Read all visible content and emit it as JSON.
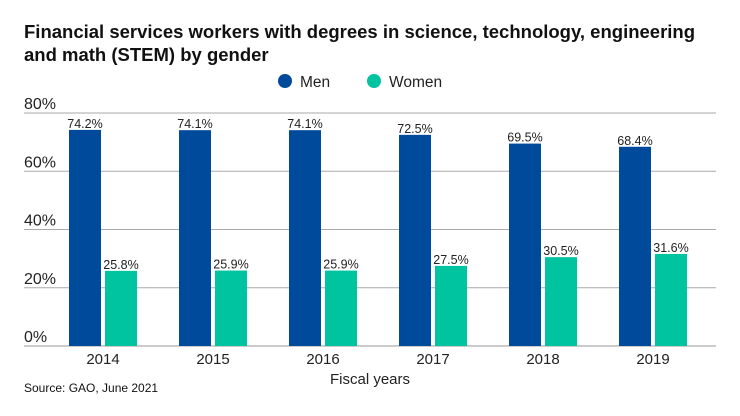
{
  "chart_data": {
    "type": "bar",
    "title": "Financial services workers with degrees in science, technology, engineering and math (STEM) by gender",
    "xlabel": "Fiscal years",
    "ylabel": "",
    "ylim": [
      0,
      80
    ],
    "yticks": [
      "0%",
      "20%",
      "40%",
      "60%",
      "80%"
    ],
    "ytick_values": [
      0,
      20,
      40,
      60,
      80
    ],
    "categories": [
      "2014",
      "2015",
      "2016",
      "2017",
      "2018",
      "2019"
    ],
    "series": [
      {
        "name": "Men",
        "color": "#004a9c",
        "values": [
          74.2,
          74.1,
          74.1,
          72.5,
          69.5,
          68.4
        ],
        "labels": [
          "74.2%",
          "74.1%",
          "74.1%",
          "72.5%",
          "69.5%",
          "68.4%"
        ]
      },
      {
        "name": "Women",
        "color": "#00c3a0",
        "values": [
          25.8,
          25.9,
          25.9,
          27.5,
          30.5,
          31.6
        ],
        "labels": [
          "25.8%",
          "25.9%",
          "25.9%",
          "27.5%",
          "30.5%",
          "31.6%"
        ]
      }
    ],
    "legend": "top-center",
    "grid": true,
    "source": "Source: GAO, June 2021"
  }
}
